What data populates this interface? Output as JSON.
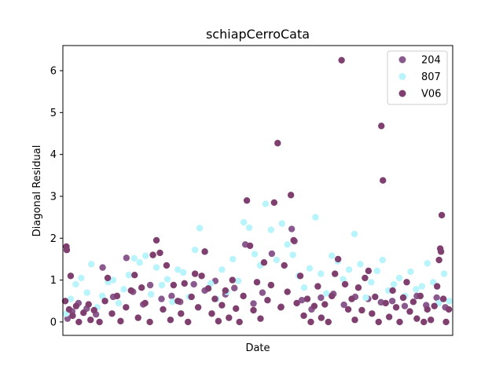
{
  "chart_data": {
    "type": "scatter",
    "title": "schiapCerroCata",
    "xlabel": "Date",
    "ylabel": "Diagonal Residual",
    "xlim": [
      0,
      100
    ],
    "ylim": [
      -0.32,
      6.6
    ],
    "yticks": [
      0,
      1,
      2,
      3,
      4,
      5,
      6
    ],
    "ytick_labels": [
      "0",
      "1",
      "2",
      "3",
      "4",
      "5",
      "6"
    ],
    "grid": false,
    "legend_position": "top-right",
    "series": [
      {
        "name": "204",
        "color": "#8a5a8e",
        "points": [
          [
            1.2,
            0.08
          ],
          [
            2.4,
            0.25
          ],
          [
            4.0,
            0.45
          ],
          [
            6.1,
            0.32
          ],
          [
            8.5,
            0.18
          ],
          [
            10.2,
            1.3
          ],
          [
            12.9,
            0.6
          ],
          [
            16.3,
            1.53
          ],
          [
            18.0,
            0.72
          ],
          [
            20.6,
            0.42
          ],
          [
            22.4,
            0.88
          ],
          [
            25.3,
            0.55
          ],
          [
            27.9,
            0.62
          ],
          [
            30.1,
            0.48
          ],
          [
            33.6,
            0.9
          ],
          [
            36.4,
            0.75
          ],
          [
            39.1,
            0.98
          ],
          [
            41.7,
            0.66
          ],
          [
            44.0,
            0.81
          ],
          [
            46.8,
            1.85
          ],
          [
            48.9,
            0.44
          ],
          [
            51.2,
            0.7
          ],
          [
            53.6,
            1.63
          ],
          [
            56.0,
            0.36
          ],
          [
            58.7,
            2.22
          ],
          [
            59.4,
            1.93
          ],
          [
            61.3,
            0.52
          ],
          [
            63.8,
            0.3
          ],
          [
            66.2,
            0.58
          ],
          [
            69.4,
            0.67
          ],
          [
            72.1,
            0.41
          ],
          [
            75.0,
            0.6
          ],
          [
            78.3,
            0.55
          ],
          [
            81.6,
            0.47
          ],
          [
            84.5,
            0.5
          ],
          [
            87.7,
            0.38
          ],
          [
            90.8,
            0.62
          ],
          [
            93.2,
            0.4
          ],
          [
            95.9,
            0.58
          ],
          [
            98.1,
            0.35
          ]
        ]
      },
      {
        "name": "807",
        "color": "#b8f4fc",
        "points": [
          [
            0.8,
            0.2
          ],
          [
            2.0,
            0.55
          ],
          [
            3.3,
            0.9
          ],
          [
            4.7,
            1.05
          ],
          [
            6.2,
            0.7
          ],
          [
            7.3,
            1.38
          ],
          [
            8.8,
            0.35
          ],
          [
            10.1,
            0.62
          ],
          [
            11.6,
            0.95
          ],
          [
            12.9,
            1.0
          ],
          [
            14.3,
            0.45
          ],
          [
            15.6,
            0.78
          ],
          [
            16.9,
            1.12
          ],
          [
            18.3,
            1.52
          ],
          [
            19.7,
            1.42
          ],
          [
            21.2,
            1.58
          ],
          [
            22.6,
            0.66
          ],
          [
            24.0,
            1.3
          ],
          [
            25.4,
            0.88
          ],
          [
            26.8,
            1.02
          ],
          [
            28.1,
            0.48
          ],
          [
            29.5,
            1.25
          ],
          [
            30.9,
            1.18
          ],
          [
            32.4,
            0.6
          ],
          [
            33.9,
            1.72
          ],
          [
            35.1,
            2.24
          ],
          [
            36.5,
            1.68
          ],
          [
            37.9,
            0.92
          ],
          [
            39.4,
            0.55
          ],
          [
            40.8,
            1.25
          ],
          [
            42.1,
            0.72
          ],
          [
            43.6,
            1.5
          ],
          [
            45.0,
            0.98
          ],
          [
            46.4,
            2.38
          ],
          [
            47.8,
            2.25
          ],
          [
            49.2,
            1.62
          ],
          [
            50.6,
            1.35
          ],
          [
            52.0,
            2.82
          ],
          [
            53.4,
            2.2
          ],
          [
            54.8,
            1.48
          ],
          [
            56.2,
            2.35
          ],
          [
            57.6,
            1.85
          ],
          [
            59.0,
            1.6
          ],
          [
            60.5,
            1.1
          ],
          [
            61.9,
            0.82
          ],
          [
            63.3,
            1.28
          ],
          [
            64.8,
            2.5
          ],
          [
            66.2,
            1.15
          ],
          [
            67.6,
            0.68
          ],
          [
            69.0,
            1.58
          ],
          [
            70.5,
            1.45
          ],
          [
            71.9,
            1.02
          ],
          [
            73.4,
            1.25
          ],
          [
            74.8,
            2.1
          ],
          [
            76.3,
            1.38
          ],
          [
            77.7,
            0.58
          ],
          [
            79.1,
            0.95
          ],
          [
            80.6,
            1.22
          ],
          [
            82.0,
            1.48
          ],
          [
            83.5,
            0.75
          ],
          [
            84.9,
            0.9
          ],
          [
            86.3,
            1.05
          ],
          [
            87.8,
            0.62
          ],
          [
            89.2,
            1.2
          ],
          [
            90.6,
            0.78
          ],
          [
            92.1,
            0.85
          ],
          [
            93.5,
            1.4
          ],
          [
            95.0,
            0.95
          ],
          [
            96.4,
            0.45
          ],
          [
            97.8,
            1.15
          ],
          [
            99.1,
            0.5
          ]
        ]
      },
      {
        "name": "V06",
        "color": "#7f3f6f",
        "points": [
          [
            0.6,
            0.5
          ],
          [
            0.9,
            1.8
          ],
          [
            1.0,
            1.72
          ],
          [
            1.6,
            0.3
          ],
          [
            2.0,
            1.1
          ],
          [
            2.5,
            0.15
          ],
          [
            3.4,
            0.38
          ],
          [
            4.1,
            0.0
          ],
          [
            5.3,
            0.22
          ],
          [
            6.6,
            0.42
          ],
          [
            7.1,
            0.05
          ],
          [
            8.0,
            0.28
          ],
          [
            9.4,
            0.0
          ],
          [
            10.8,
            0.5
          ],
          [
            11.5,
            1.05
          ],
          [
            12.6,
            0.2
          ],
          [
            13.9,
            0.62
          ],
          [
            14.8,
            0.02
          ],
          [
            16.2,
            0.35
          ],
          [
            17.5,
            0.75
          ],
          [
            18.4,
            1.12
          ],
          [
            19.3,
            0.1
          ],
          [
            20.2,
            0.82
          ],
          [
            21.1,
            0.45
          ],
          [
            22.3,
            0.0
          ],
          [
            23.1,
            1.6
          ],
          [
            24.0,
            1.95
          ],
          [
            24.9,
            1.65
          ],
          [
            25.7,
            0.3
          ],
          [
            26.6,
            1.35
          ],
          [
            27.6,
            0.05
          ],
          [
            28.4,
            0.88
          ],
          [
            29.5,
            0.5
          ],
          [
            30.3,
            0.2
          ],
          [
            31.2,
            0.92
          ],
          [
            32.1,
            0.0
          ],
          [
            33.0,
            0.6
          ],
          [
            33.9,
            1.15
          ],
          [
            34.7,
            0.35
          ],
          [
            35.6,
            1.1
          ],
          [
            36.4,
            1.68
          ],
          [
            37.3,
            0.8
          ],
          [
            38.2,
            0.2
          ],
          [
            39.0,
            0.55
          ],
          [
            39.9,
            0.02
          ],
          [
            40.8,
            0.4
          ],
          [
            41.7,
            0.75
          ],
          [
            42.6,
            0.1
          ],
          [
            43.5,
            1.0
          ],
          [
            44.4,
            0.32
          ],
          [
            45.3,
            0.0
          ],
          [
            46.3,
            0.62
          ],
          [
            47.2,
            2.9
          ],
          [
            48.0,
            1.82
          ],
          [
            48.9,
            0.28
          ],
          [
            49.8,
            0.95
          ],
          [
            50.7,
            0.08
          ],
          [
            51.6,
            1.42
          ],
          [
            52.5,
            0.52
          ],
          [
            53.4,
            0.88
          ],
          [
            54.2,
            2.85
          ],
          [
            55.1,
            4.27
          ],
          [
            55.9,
            0.35
          ],
          [
            56.8,
            1.35
          ],
          [
            57.6,
            0.72
          ],
          [
            58.5,
            3.03
          ],
          [
            59.2,
            1.95
          ],
          [
            60.0,
            0.45
          ],
          [
            60.9,
            1.1
          ],
          [
            61.8,
            0.15
          ],
          [
            62.7,
            0.55
          ],
          [
            63.6,
            0.0
          ],
          [
            64.5,
            0.38
          ],
          [
            65.4,
            0.85
          ],
          [
            66.3,
            0.1
          ],
          [
            67.2,
            0.42
          ],
          [
            68.1,
            0.0
          ],
          [
            69.0,
            0.62
          ],
          [
            69.8,
            1.15
          ],
          [
            70.6,
            1.5
          ],
          [
            71.5,
            6.25
          ],
          [
            72.4,
            0.9
          ],
          [
            73.2,
            0.3
          ],
          [
            74.1,
            0.55
          ],
          [
            74.9,
            0.05
          ],
          [
            75.8,
            0.82
          ],
          [
            76.7,
            0.28
          ],
          [
            77.5,
            1.05
          ],
          [
            78.4,
            1.22
          ],
          [
            79.3,
            0.2
          ],
          [
            80.1,
            0.6
          ],
          [
            81.0,
            0.0
          ],
          [
            81.7,
            4.68
          ],
          [
            82.1,
            3.38
          ],
          [
            82.8,
            0.45
          ],
          [
            83.7,
            0.12
          ],
          [
            84.6,
            0.75
          ],
          [
            85.5,
            0.35
          ],
          [
            86.4,
            0.0
          ],
          [
            87.3,
            0.58
          ],
          [
            88.2,
            0.95
          ],
          [
            89.0,
            0.25
          ],
          [
            89.9,
            0.48
          ],
          [
            90.8,
            0.08
          ],
          [
            91.7,
            0.62
          ],
          [
            92.6,
            0.0
          ],
          [
            93.5,
            0.3
          ],
          [
            94.4,
            0.05
          ],
          [
            95.3,
            0.38
          ],
          [
            96.0,
            0.85
          ],
          [
            96.5,
            1.48
          ],
          [
            96.8,
            1.75
          ],
          [
            97.0,
            1.68
          ],
          [
            97.2,
            2.55
          ],
          [
            97.6,
            0.55
          ],
          [
            98.3,
            0.0
          ],
          [
            99.0,
            0.3
          ]
        ]
      }
    ]
  }
}
